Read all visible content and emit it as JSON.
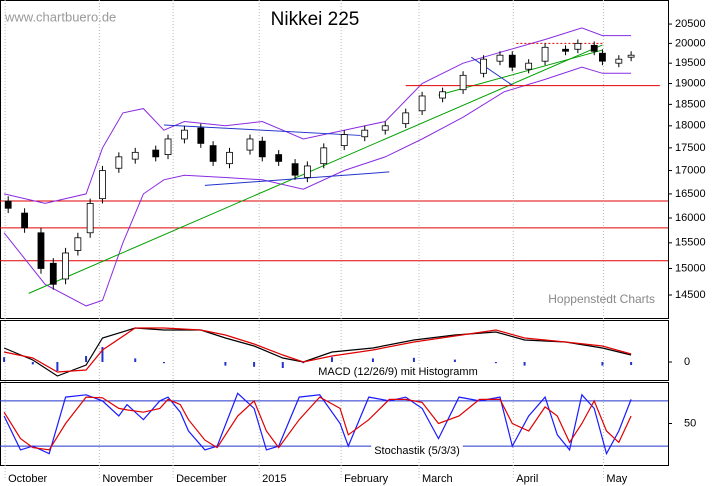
{
  "chart_data": [
    {
      "type": "candlestick",
      "title": "Nikkei 225",
      "source": "www.chartbuero.de",
      "credit": "Hoppenstedt Charts",
      "log_scale": true,
      "ylim": [
        14080,
        21140
      ],
      "yticks": [
        14500,
        15000,
        15500,
        16000,
        16500,
        17000,
        17500,
        18000,
        18500,
        19000,
        19500,
        20000,
        20500
      ],
      "xlim": [
        -1,
        162
      ],
      "x": [
        1,
        5,
        9,
        12,
        15,
        18,
        21,
        24,
        28,
        32,
        37,
        40,
        44,
        48,
        51,
        55,
        60,
        63,
        67,
        71,
        74,
        78,
        83,
        88,
        93,
        98,
        102,
        107,
        112,
        117,
        121,
        124,
        128,
        132,
        137,
        140,
        144,
        146,
        150,
        153
      ],
      "open": [
        16350,
        16100,
        15700,
        15100,
        14800,
        15350,
        15700,
        16400,
        17050,
        17250,
        17450,
        17350,
        17700,
        17950,
        17550,
        17150,
        17450,
        17650,
        17350,
        17150,
        16850,
        17150,
        17550,
        17750,
        17900,
        18050,
        18350,
        18650,
        18850,
        19250,
        19550,
        19700,
        19350,
        19550,
        19850,
        19850,
        19950,
        19750,
        19500,
        19650
      ],
      "high": [
        16450,
        16200,
        15800,
        15200,
        15400,
        15700,
        16400,
        17100,
        17400,
        17500,
        17550,
        17800,
        18000,
        18050,
        17650,
        17500,
        17800,
        17750,
        17450,
        17250,
        17200,
        17600,
        17900,
        18000,
        18100,
        18400,
        18800,
        18900,
        19300,
        19700,
        19800,
        19800,
        19600,
        20000,
        19950,
        20100,
        20050,
        19850,
        19700,
        19800
      ],
      "low": [
        16100,
        15700,
        14900,
        14600,
        14700,
        15250,
        15600,
        16300,
        16950,
        17150,
        17200,
        17250,
        17600,
        17500,
        17100,
        17050,
        17350,
        17200,
        17100,
        16800,
        16750,
        17050,
        17450,
        17650,
        17800,
        17950,
        18250,
        18550,
        18750,
        19150,
        19450,
        19300,
        19250,
        19450,
        19700,
        19750,
        19700,
        19450,
        19400,
        19550
      ],
      "close": [
        16200,
        15800,
        15000,
        14700,
        15300,
        15600,
        16300,
        17000,
        17300,
        17400,
        17300,
        17700,
        17900,
        17600,
        17200,
        17400,
        17700,
        17300,
        17200,
        16900,
        17100,
        17500,
        17800,
        17900,
        18000,
        18300,
        18700,
        18800,
        19200,
        19600,
        19700,
        19400,
        19500,
        19900,
        19800,
        20000,
        19800,
        19550,
        19600,
        19700
      ],
      "up_color": "#ffffff",
      "down_color": "#000000",
      "bands": {
        "color": "#8a2be2",
        "x": [
          0,
          10,
          20,
          24,
          29,
          34,
          39,
          44,
          54,
          63,
          73,
          83,
          93,
          102,
          112,
          122,
          132,
          141,
          146,
          153
        ],
        "upper": [
          16500,
          16300,
          16500,
          17500,
          18300,
          18400,
          17900,
          18100,
          18000,
          18100,
          17700,
          17900,
          18100,
          19000,
          19500,
          19800,
          20100,
          20400,
          20200,
          20200
        ],
        "lower": [
          15700,
          14700,
          14300,
          14400,
          15500,
          16500,
          16800,
          16900,
          16850,
          16800,
          16600,
          17000,
          17300,
          17700,
          18200,
          18800,
          19100,
          19400,
          19250,
          19250
        ]
      },
      "levels": [
        {
          "value": 16350,
          "color": "#e00000"
        },
        {
          "value": 15800,
          "color": "#e00000"
        },
        {
          "value": 15150,
          "color": "#e00000"
        }
      ],
      "trendlines": [
        {
          "x": [
            6,
            146
          ],
          "y": [
            14530,
            19960
          ],
          "color": "#00a000",
          "style": "solid"
        },
        {
          "x": [
            106,
            146
          ],
          "y": [
            18720,
            19830
          ],
          "color": "#00a000",
          "style": "solid"
        },
        {
          "x": [
            49,
            94
          ],
          "y": [
            16680,
            16970
          ],
          "color": "#2233cc",
          "style": "solid"
        },
        {
          "x": [
            39,
            87
          ],
          "y": [
            18020,
            17780
          ],
          "color": "#2233cc",
          "style": "solid"
        },
        {
          "x": [
            114,
            124
          ],
          "y": [
            19650,
            18960
          ],
          "color": "#2233cc",
          "style": "solid"
        },
        {
          "x": [
            98,
            160
          ],
          "y": [
            18950,
            18950
          ],
          "color": "#e00000",
          "style": "solid"
        },
        {
          "x": [
            125,
            146
          ],
          "y": [
            20000,
            20000
          ],
          "color": "#e00000",
          "style": "dotted"
        }
      ]
    },
    {
      "type": "line",
      "label": "MACD (12/26/9) mit Histogramm",
      "ylim": [
        -300,
        700
      ],
      "yticks": [
        0
      ],
      "xlim": [
        -1,
        162
      ],
      "x": [
        0,
        7,
        13,
        20,
        24,
        32,
        39,
        48,
        54,
        61,
        68,
        73,
        80,
        90,
        100,
        110,
        120,
        127,
        137,
        146,
        153
      ],
      "series": [
        {
          "color": "#000000",
          "values": [
            233,
            33,
            -233,
            -50,
            400,
            567,
            533,
            533,
            400,
            267,
            67,
            0,
            167,
            233,
            367,
            450,
            500,
            367,
            333,
            233,
            117
          ]
        },
        {
          "color": "#e00000",
          "values": [
            167,
            67,
            -167,
            -133,
            200,
            567,
            567,
            533,
            450,
            300,
            117,
            0,
            100,
            200,
            333,
            433,
            533,
            400,
            333,
            267,
            133
          ]
        }
      ],
      "histogram": {
        "color": "#2233cc",
        "values": [
          80,
          -40,
          -150,
          100,
          250,
          60,
          -20,
          0,
          -60,
          -80,
          -100,
          -20,
          80,
          60,
          70,
          40,
          -20,
          -60,
          0,
          -60,
          -50
        ]
      }
    },
    {
      "type": "line",
      "label": "Stochastik (5/3/3)",
      "ylim": [
        -5,
        105
      ],
      "yticks": [
        50
      ],
      "xlim": [
        -1,
        162
      ],
      "levels": [
        {
          "value": 20,
          "color": "#2233cc"
        },
        {
          "value": 80,
          "color": "#2233cc"
        }
      ],
      "x": [
        0,
        4,
        7,
        11,
        15,
        20,
        24,
        28,
        30,
        34,
        38,
        40,
        43,
        45,
        49,
        52,
        57,
        61,
        64,
        67,
        72,
        77,
        82,
        84,
        89,
        94,
        98,
        102,
        106,
        111,
        116,
        121,
        124,
        128,
        132,
        135,
        138,
        141,
        144,
        147,
        150,
        153
      ],
      "series": [
        {
          "color": "#1a1aff",
          "values": [
            60,
            15,
            20,
            10,
            85,
            88,
            80,
            60,
            75,
            55,
            80,
            85,
            65,
            40,
            15,
            20,
            90,
            70,
            15,
            20,
            85,
            88,
            50,
            20,
            85,
            80,
            85,
            70,
            30,
            85,
            80,
            85,
            20,
            60,
            85,
            35,
            15,
            88,
            70,
            10,
            40,
            82
          ]
        },
        {
          "color": "#e00000",
          "values": [
            65,
            30,
            18,
            15,
            50,
            85,
            84,
            70,
            68,
            65,
            70,
            82,
            75,
            55,
            28,
            18,
            60,
            80,
            40,
            18,
            55,
            85,
            70,
            35,
            55,
            82,
            82,
            78,
            50,
            60,
            82,
            82,
            50,
            40,
            72,
            60,
            25,
            50,
            80,
            40,
            25,
            60
          ]
        }
      ],
      "xticks": [
        {
          "value": 0,
          "label": "October"
        },
        {
          "value": 23,
          "label": "November"
        },
        {
          "value": 41,
          "label": "December"
        },
        {
          "value": 62,
          "label": "2015"
        },
        {
          "value": 82,
          "label": "February"
        },
        {
          "value": 101,
          "label": "March"
        },
        {
          "value": 124,
          "label": "April"
        },
        {
          "value": 146,
          "label": "May"
        }
      ]
    }
  ]
}
